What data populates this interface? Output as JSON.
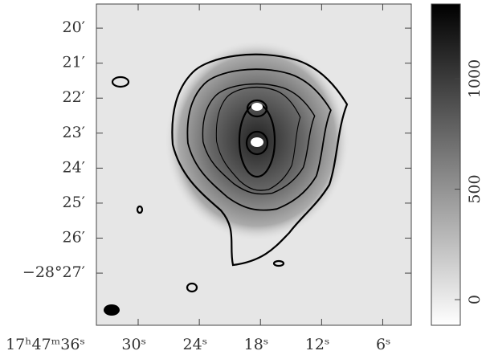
{
  "chart_data": {
    "type": "image",
    "xlim": [
      34.1,
      3.2
    ],
    "xticks": [
      {
        "value": 36,
        "label": "17ʰ47ᵐ36ˢ"
      },
      {
        "value": 30,
        "label": "30ˢ"
      },
      {
        "value": 24,
        "label": "24ˢ"
      },
      {
        "value": 18,
        "label": "18ˢ"
      },
      {
        "value": 12,
        "label": "12ˢ"
      },
      {
        "value": 6,
        "label": "6ˢ"
      }
    ],
    "ylim": [
      19.31,
      28.49
    ],
    "yticks": [
      {
        "value": 20,
        "label": "20′"
      },
      {
        "value": 21,
        "label": "21′"
      },
      {
        "value": 22,
        "label": "22′"
      },
      {
        "value": 23,
        "label": "23′"
      },
      {
        "value": 24,
        "label": "24′"
      },
      {
        "value": 25,
        "label": "25′"
      },
      {
        "value": 26,
        "label": "26′"
      },
      {
        "value": 27,
        "label": "−28°27′"
      }
    ],
    "colorbar": {
      "lim": [
        -116,
        1338
      ],
      "ticks": [
        0,
        500,
        1000
      ]
    }
  }
}
